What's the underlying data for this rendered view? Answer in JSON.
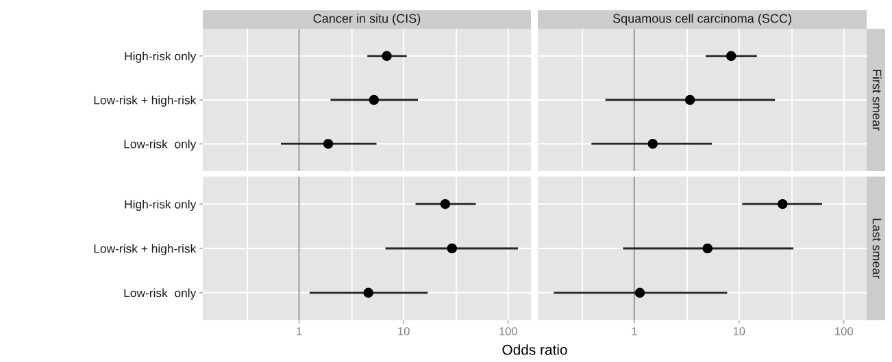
{
  "chart_data": [
    {
      "type": "scatter",
      "title": "Cancer in situ (CIS)",
      "orientation": "horizontal",
      "categories": [
        "High-risk only",
        "Low-risk + high-risk",
        "Low-risk  only"
      ],
      "series": [
        {
          "color": "#000000",
          "values": [
            6.9,
            5.2,
            1.9
          ],
          "errors": [
            [
              4.5,
              10.7
            ],
            [
              2.0,
              13.7
            ],
            [
              0.67,
              5.5
            ]
          ]
        }
      ],
      "xlim": [
        0.12,
        165
      ],
      "xticks": [
        {
          "value": 0.32,
          "label": null
        },
        1,
        {
          "value": 3.2,
          "label": null
        },
        10,
        {
          "value": 32,
          "label": null
        },
        100
      ],
      "log": "x",
      "grid": true,
      "marker": "circle",
      "tick_labels": "y",
      "ref_lines": [
        {
          "axis": "x",
          "value": 1,
          "color": "#999999"
        }
      ]
    },
    {
      "type": "scatter",
      "title": "Squamous cell carcinoma (SCC)",
      "y2label": "First smear",
      "orientation": "horizontal",
      "categories": [
        null,
        null,
        null
      ],
      "series": [
        {
          "color": "#000000",
          "values": [
            8.4,
            3.4,
            1.5
          ],
          "errors": [
            [
              4.8,
              14.8
            ],
            [
              0.53,
              22
            ],
            [
              0.39,
              5.5
            ]
          ]
        }
      ],
      "xlim": [
        0.12,
        165
      ],
      "xticks": [
        {
          "value": 0.32,
          "label": null
        },
        1,
        {
          "value": 3.2,
          "label": null
        },
        10,
        {
          "value": 32,
          "label": null
        },
        100
      ],
      "log": "x",
      "grid": true,
      "marker": "circle",
      "tick_labels": false,
      "ref_lines": [
        {
          "axis": "x",
          "value": 1,
          "color": "#999999"
        }
      ]
    },
    {
      "type": "scatter",
      "xlabel": "Odds ratio",
      "orientation": "horizontal",
      "categories": [
        "High-risk only",
        "Low-risk + high-risk",
        "Low-risk  only"
      ],
      "series": [
        {
          "color": "#000000",
          "values": [
            25,
            29,
            4.6
          ],
          "errors": [
            [
              13,
              49
            ],
            [
              6.7,
              124
            ],
            [
              1.26,
              17
            ]
          ]
        }
      ],
      "xlim": [
        0.12,
        165
      ],
      "xticks": [
        {
          "value": 0.32,
          "label": null
        },
        1,
        {
          "value": 3.2,
          "label": null
        },
        10,
        {
          "value": 32,
          "label": null
        },
        100
      ],
      "log": "x",
      "grid": true,
      "marker": "circle",
      "ref_lines": [
        {
          "axis": "x",
          "value": 1,
          "color": "#999999"
        }
      ]
    },
    {
      "type": "scatter",
      "y2label": "Last smear",
      "orientation": "horizontal",
      "categories": [
        null,
        null,
        null
      ],
      "series": [
        {
          "color": "#000000",
          "values": [
            26,
            5.0,
            1.13
          ],
          "errors": [
            [
              10.7,
              62
            ],
            [
              0.78,
              33
            ],
            [
              0.17,
              7.7
            ]
          ]
        }
      ],
      "xlim": [
        0.12,
        165
      ],
      "xticks": [
        {
          "value": 0.32,
          "label": null
        },
        1,
        {
          "value": 3.2,
          "label": null
        },
        10,
        {
          "value": 32,
          "label": null
        },
        100
      ],
      "log": "x",
      "grid": true,
      "marker": "circle",
      "tick_labels": "x",
      "ref_lines": [
        {
          "axis": "x",
          "value": 1,
          "color": "#999999"
        }
      ]
    }
  ]
}
